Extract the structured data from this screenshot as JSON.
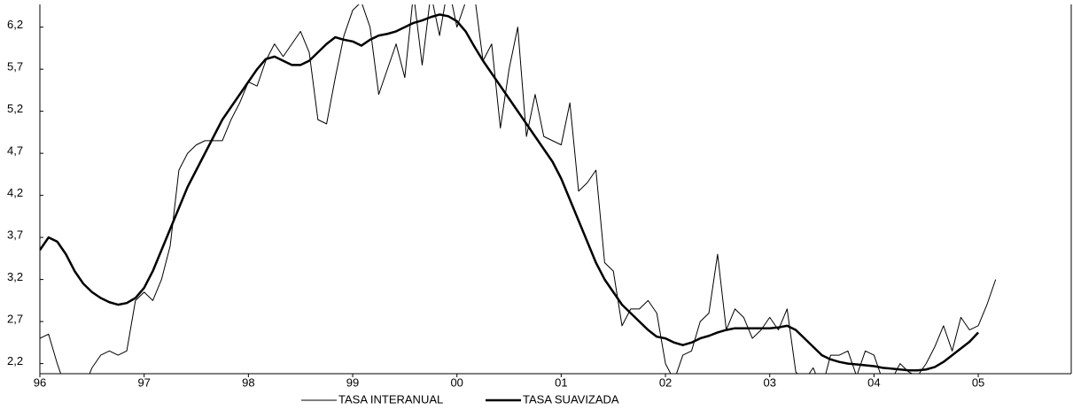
{
  "chart_data": {
    "type": "line",
    "xlim": [
      0,
      118.7
    ],
    "ylim": [
      2.08,
      6.47
    ],
    "xticks": [
      {
        "value": 0,
        "label": "96"
      },
      {
        "value": 12,
        "label": "97"
      },
      {
        "value": 24,
        "label": "98"
      },
      {
        "value": 36,
        "label": "99"
      },
      {
        "value": 48,
        "label": "00"
      },
      {
        "value": 60,
        "label": "01"
      },
      {
        "value": 72,
        "label": "02"
      },
      {
        "value": 84,
        "label": "03"
      },
      {
        "value": 96,
        "label": "04"
      },
      {
        "value": 108,
        "label": "05"
      }
    ],
    "yticks": [
      {
        "value": 2.2,
        "label": "2,2"
      },
      {
        "value": 2.7,
        "label": "2,7"
      },
      {
        "value": 3.2,
        "label": "3,2"
      },
      {
        "value": 3.7,
        "label": "3,7"
      },
      {
        "value": 4.2,
        "label": "4,2"
      },
      {
        "value": 4.7,
        "label": "4,7"
      },
      {
        "value": 5.2,
        "label": "5,2"
      },
      {
        "value": 5.7,
        "label": "5,7"
      },
      {
        "value": 6.2,
        "label": "6,2"
      }
    ],
    "series": [
      {
        "name": "TASA INTERANUAL",
        "color": "#000000",
        "width": 1,
        "x": [
          0,
          1,
          2,
          3,
          4,
          5,
          6,
          7,
          8,
          9,
          10,
          11,
          12,
          13,
          14,
          15,
          16,
          17,
          18,
          19,
          20,
          21,
          22,
          23,
          24,
          25,
          26,
          27,
          28,
          29,
          30,
          31,
          32,
          33,
          34,
          35,
          36,
          37,
          38,
          39,
          40,
          41,
          42,
          43,
          44,
          45,
          46,
          47,
          48,
          49,
          50,
          51,
          52,
          53,
          54,
          55,
          56,
          57,
          58,
          59,
          60,
          61,
          62,
          63,
          64,
          65,
          66,
          67,
          68,
          69,
          70,
          71,
          72,
          73,
          74,
          75,
          76,
          77,
          78,
          79,
          80,
          81,
          82,
          83,
          84,
          85,
          86,
          87,
          88,
          89,
          90,
          91,
          92,
          93,
          94,
          95,
          96,
          97,
          98,
          99,
          100,
          101,
          102,
          103,
          104,
          105,
          106,
          107,
          108,
          109,
          110
        ],
        "values": [
          2.5,
          2.55,
          2.2,
          1.9,
          1.8,
          1.9,
          2.15,
          2.3,
          2.35,
          2.3,
          2.35,
          2.95,
          3.05,
          2.95,
          3.2,
          3.6,
          4.5,
          4.7,
          4.8,
          4.85,
          4.85,
          4.85,
          5.1,
          5.3,
          5.55,
          5.5,
          5.8,
          6.0,
          5.85,
          6.0,
          6.15,
          5.9,
          5.1,
          5.05,
          5.6,
          6.1,
          6.4,
          6.5,
          6.2,
          5.4,
          5.7,
          6.0,
          5.6,
          6.6,
          5.75,
          6.6,
          6.1,
          6.7,
          6.2,
          6.5,
          6.6,
          5.8,
          6.0,
          5.0,
          5.7,
          6.2,
          4.9,
          5.4,
          4.9,
          4.85,
          4.8,
          5.3,
          4.25,
          4.35,
          4.5,
          3.4,
          3.3,
          2.65,
          2.85,
          2.85,
          2.95,
          2.8,
          2.2,
          2.0,
          2.3,
          2.35,
          2.7,
          2.8,
          3.5,
          2.6,
          2.85,
          2.75,
          2.5,
          2.6,
          2.75,
          2.6,
          2.85,
          2.1,
          2.0,
          2.15,
          1.9,
          2.3,
          2.3,
          2.35,
          2.05,
          2.35,
          2.3,
          2.0,
          2.0,
          2.2,
          2.1,
          2.05,
          2.2,
          2.4,
          2.65,
          2.35,
          2.75,
          2.6,
          2.65,
          2.9,
          3.2
        ]
      },
      {
        "name": "TASA SUAVIZADA",
        "color": "#000000",
        "width": 2.5,
        "x": [
          0,
          1,
          2,
          3,
          4,
          5,
          6,
          7,
          8,
          9,
          10,
          11,
          12,
          13,
          14,
          15,
          16,
          17,
          18,
          19,
          20,
          21,
          22,
          23,
          24,
          25,
          26,
          27,
          28,
          29,
          30,
          31,
          32,
          33,
          34,
          35,
          36,
          37,
          38,
          39,
          40,
          41,
          42,
          43,
          44,
          45,
          46,
          47,
          48,
          49,
          50,
          51,
          52,
          53,
          54,
          55,
          56,
          57,
          58,
          59,
          60,
          61,
          62,
          63,
          64,
          65,
          66,
          67,
          68,
          69,
          70,
          71,
          72,
          73,
          74,
          75,
          76,
          77,
          78,
          79,
          80,
          81,
          82,
          83,
          84,
          85,
          86,
          87,
          88,
          89,
          90,
          91,
          92,
          93,
          94,
          95,
          96,
          97,
          98,
          99,
          100,
          101,
          102,
          103,
          104,
          105,
          106,
          107,
          108
        ],
        "values": [
          3.55,
          3.7,
          3.65,
          3.5,
          3.3,
          3.15,
          3.05,
          2.98,
          2.93,
          2.9,
          2.92,
          2.98,
          3.1,
          3.3,
          3.55,
          3.8,
          4.05,
          4.3,
          4.5,
          4.7,
          4.9,
          5.1,
          5.25,
          5.4,
          5.55,
          5.7,
          5.82,
          5.85,
          5.8,
          5.75,
          5.75,
          5.8,
          5.9,
          6.0,
          6.08,
          6.05,
          6.03,
          5.98,
          6.05,
          6.1,
          6.12,
          6.15,
          6.2,
          6.25,
          6.28,
          6.32,
          6.35,
          6.33,
          6.27,
          6.15,
          5.97,
          5.8,
          5.65,
          5.5,
          5.35,
          5.2,
          5.05,
          4.9,
          4.75,
          4.6,
          4.4,
          4.15,
          3.9,
          3.65,
          3.4,
          3.2,
          3.05,
          2.9,
          2.8,
          2.7,
          2.6,
          2.52,
          2.5,
          2.45,
          2.42,
          2.45,
          2.5,
          2.53,
          2.57,
          2.6,
          2.62,
          2.62,
          2.62,
          2.62,
          2.62,
          2.63,
          2.65,
          2.6,
          2.5,
          2.4,
          2.3,
          2.25,
          2.22,
          2.2,
          2.19,
          2.18,
          2.17,
          2.15,
          2.14,
          2.13,
          2.12,
          2.12,
          2.13,
          2.16,
          2.22,
          2.3,
          2.38,
          2.46,
          2.57
        ]
      }
    ]
  }
}
